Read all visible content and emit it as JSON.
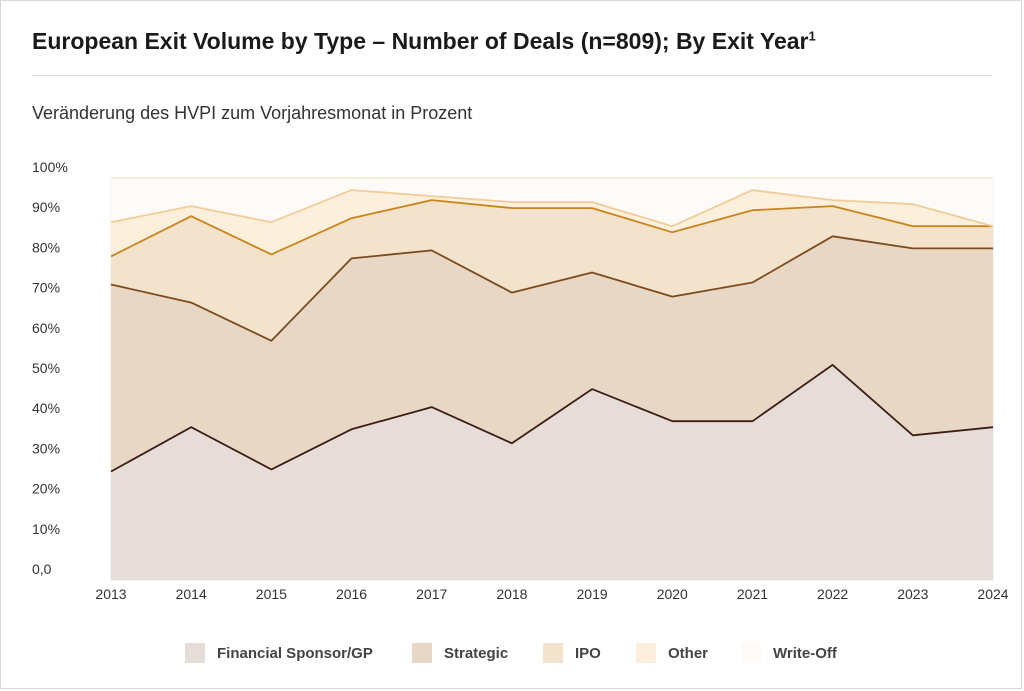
{
  "header": {
    "title": "European Exit Volume by Type – Number of Deals (n=809); By Exit Year",
    "title_sup": "1",
    "subtitle": "Veränderung des HVPI zum Vorjahresmonat in Prozent"
  },
  "chart_data": {
    "type": "area",
    "stacked": true,
    "x": [
      "2013",
      "2014",
      "2015",
      "2016",
      "2017",
      "2018",
      "2019",
      "2020",
      "2021",
      "2022",
      "2023",
      "2024"
    ],
    "y_ticks": [
      "0,0",
      "10%",
      "20%",
      "30%",
      "40%",
      "50%",
      "60%",
      "70%",
      "80%",
      "90%",
      "100%"
    ],
    "ylim": [
      0,
      100
    ],
    "grid": true,
    "legend_position": "bottom",
    "series": [
      {
        "name": "Financial Sponsor/GP",
        "values": [
          27,
          38,
          27.5,
          37.5,
          43,
          34,
          47.5,
          39.5,
          39.5,
          53.5,
          36,
          38
        ],
        "fill": "#e6ddd9",
        "line": "#3c1e14"
      },
      {
        "name": "Strategic",
        "values": [
          46.5,
          31,
          32,
          42.5,
          39,
          37.5,
          29,
          31,
          34.5,
          32,
          46.5,
          44.5
        ],
        "fill": "#e8d7c5",
        "line": "#7d4b1e"
      },
      {
        "name": "IPO",
        "values": [
          7,
          21.5,
          21.5,
          10,
          12.5,
          21,
          16,
          16,
          18,
          7.5,
          5.5,
          5.5
        ],
        "fill": "#f3e2cc",
        "line": "#c9841c"
      },
      {
        "name": "Other",
        "values": [
          8.5,
          2.5,
          8,
          7,
          1,
          1.5,
          1.5,
          1.5,
          5,
          1.5,
          5.5,
          0
        ],
        "fill": "#fcf0dc",
        "line": "#f0cd98"
      },
      {
        "name": "Write-Off",
        "values": [
          11,
          7,
          11,
          3,
          4.5,
          6,
          6,
          12,
          3,
          5.5,
          6.5,
          12
        ],
        "fill": "#fdfaf7",
        "line": "#f7ecdd"
      }
    ]
  }
}
